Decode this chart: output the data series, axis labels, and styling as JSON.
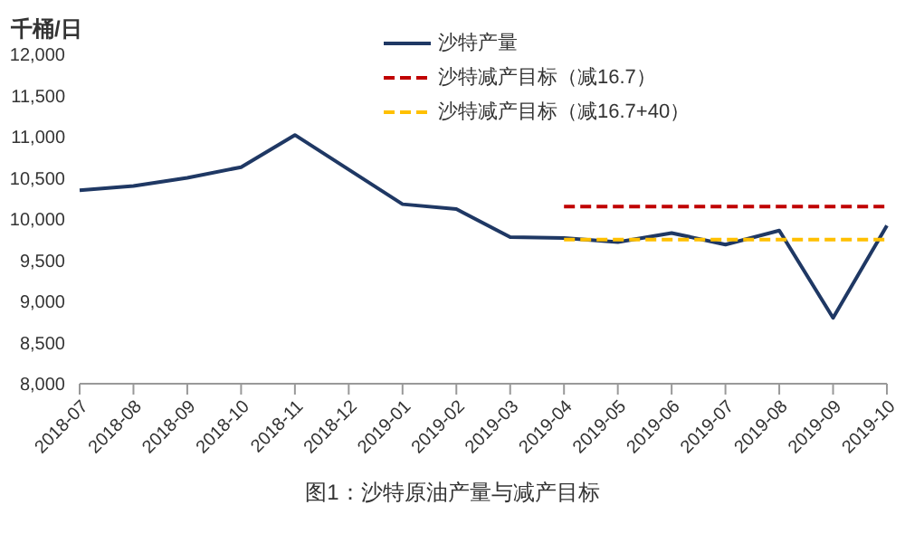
{
  "chart_data": {
    "type": "line",
    "ylabel": "千桶/日",
    "categories": [
      "2018-07",
      "2018-08",
      "2018-09",
      "2018-10",
      "2018-11",
      "2018-12",
      "2019-01",
      "2019-02",
      "2019-03",
      "2019-04",
      "2019-05",
      "2019-06",
      "2019-07",
      "2019-08",
      "2019-09",
      "2019-10"
    ],
    "series": [
      {
        "name": "沙特产量",
        "color": "#1f3864",
        "line_style": "solid",
        "values": [
          10350,
          10400,
          10500,
          10630,
          11020,
          10600,
          10180,
          10120,
          9780,
          9770,
          9720,
          9830,
          9690,
          9860,
          8800,
          9920
        ]
      },
      {
        "name": "沙特减产目标（减16.7）",
        "color": "#c00000",
        "line_style": "dashed",
        "values": [
          null,
          null,
          null,
          null,
          null,
          null,
          null,
          null,
          null,
          10150,
          10150,
          10150,
          10150,
          10150,
          10150,
          10150
        ]
      },
      {
        "name": "沙特减产目标（减16.7+40）",
        "color": "#ffc000",
        "line_style": "dashed",
        "values": [
          null,
          null,
          null,
          null,
          null,
          null,
          null,
          null,
          null,
          9750,
          9750,
          9750,
          9750,
          9750,
          9750,
          9750
        ]
      }
    ],
    "ylim": [
      8000,
      12000
    ],
    "yticks": [
      {
        "value": 8000,
        "label": "8,000"
      },
      {
        "value": 8500,
        "label": "8,500"
      },
      {
        "value": 9000,
        "label": "9,000"
      },
      {
        "value": 9500,
        "label": "9,500"
      },
      {
        "value": 10000,
        "label": "10,000"
      },
      {
        "value": 10500,
        "label": "10,500"
      },
      {
        "value": 11000,
        "label": "11,000"
      },
      {
        "value": 11500,
        "label": "11,500"
      },
      {
        "value": 12000,
        "label": "12,000"
      }
    ],
    "grid": false,
    "legend": "top right",
    "marker": "none",
    "annotations": [
      "图1：沙特原油产量与减产目标"
    ]
  }
}
